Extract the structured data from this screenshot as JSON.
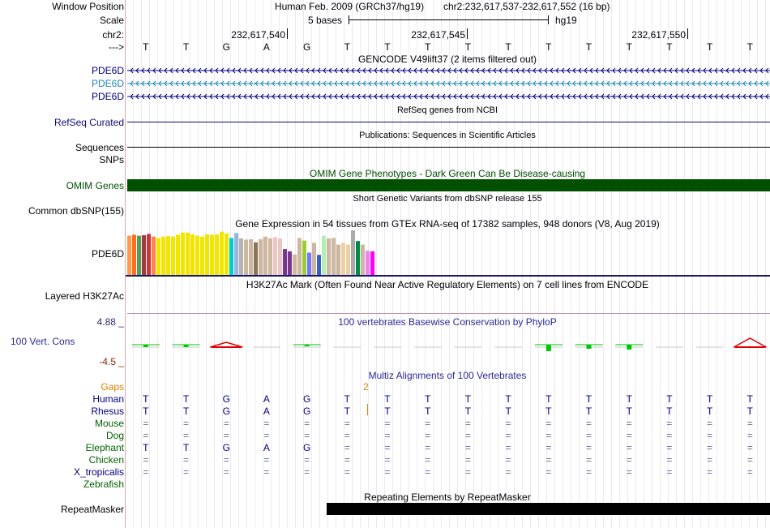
{
  "header": {
    "window_position_label": "Window Position",
    "scale_label": "Scale",
    "chr_label": "chr2:",
    "arrow_label": "--->",
    "assembly": "Human Feb. 2009 (GRCh37/hg19)",
    "position": "chr2:232,617,537-232,617,552 (16 bp)",
    "scale_text": "5 bases",
    "scale_db": "hg19",
    "ticks": [
      "232,617,540",
      "232,617,545",
      "232,617,550"
    ],
    "bases": [
      "T",
      "T",
      "G",
      "A",
      "G",
      "T",
      "T",
      "T",
      "T",
      "T",
      "T",
      "T",
      "T",
      "T",
      "T",
      "T"
    ]
  },
  "tracks": {
    "gencode": {
      "title": "GENCODE V49lift37 (2 items filtered out)",
      "items": [
        {
          "name": "PDE6D",
          "color": "#000080"
        },
        {
          "name": "PDE6D",
          "color": "#1e87b4"
        },
        {
          "name": "PDE6D",
          "color": "#000080"
        }
      ]
    },
    "refseq": {
      "title": "RefSeq genes from NCBI",
      "label": "RefSeq Curated",
      "color": "#0c0c78"
    },
    "pubs": {
      "title": "Publications: Sequences in Scientific Articles",
      "label1": "Sequences",
      "label2": "SNPs"
    },
    "omim": {
      "title": "OMIM Gene Phenotypes - Dark Green Can Be Disease-causing",
      "label": "OMIM Genes",
      "color": "#005000"
    },
    "dbsnp": {
      "title": "Short Genetic Variants from dbSNP release 155",
      "label": "Common dbSNP(155)"
    },
    "gtex": {
      "title": "Gene Expression in 54 tissues from GTEx RNA-seq of 17382 samples, 948 donors (V8, Aug 2019)",
      "label": "PDE6D",
      "bars": [
        {
          "value": 0.88,
          "color": "#ff9c4a"
        },
        {
          "value": 0.9,
          "color": "#ff6e20"
        },
        {
          "value": 0.88,
          "color": "#5a9b5a"
        },
        {
          "value": 0.89,
          "color": "#a03c3c"
        },
        {
          "value": 0.92,
          "color": "#c8373c"
        },
        {
          "value": 0.86,
          "color": "#ff8250"
        },
        {
          "value": 0.83,
          "color": "#f0e600"
        },
        {
          "value": 0.86,
          "color": "#f0e600"
        },
        {
          "value": 0.87,
          "color": "#f0e600"
        },
        {
          "value": 0.86,
          "color": "#f0e600"
        },
        {
          "value": 0.9,
          "color": "#f0e600"
        },
        {
          "value": 0.95,
          "color": "#f0e600"
        },
        {
          "value": 0.95,
          "color": "#f0e600"
        },
        {
          "value": 0.91,
          "color": "#f0e600"
        },
        {
          "value": 0.88,
          "color": "#f0e600"
        },
        {
          "value": 0.86,
          "color": "#f0e600"
        },
        {
          "value": 0.91,
          "color": "#f0e600"
        },
        {
          "value": 0.9,
          "color": "#f0e600"
        },
        {
          "value": 0.91,
          "color": "#f0e600"
        },
        {
          "value": 0.97,
          "color": "#f0e600"
        },
        {
          "value": 0.93,
          "color": "#f0e600"
        },
        {
          "value": 0.83,
          "color": "#00cdd1"
        },
        {
          "value": 0.94,
          "color": "#9bb4d7"
        },
        {
          "value": 0.82,
          "color": "#b4b4b4"
        },
        {
          "value": 0.79,
          "color": "#cdb79e"
        },
        {
          "value": 0.8,
          "color": "#cdb79e"
        },
        {
          "value": 0.73,
          "color": "#8b7355"
        },
        {
          "value": 0.8,
          "color": "#cdb79e"
        },
        {
          "value": 0.86,
          "color": "#cdb79e"
        },
        {
          "value": 0.82,
          "color": "#cdb79e"
        },
        {
          "value": 0.85,
          "color": "#eec5c5"
        },
        {
          "value": 0.82,
          "color": "#eec5c5"
        },
        {
          "value": 0.58,
          "color": "#7a378b"
        },
        {
          "value": 0.53,
          "color": "#7a378b"
        },
        {
          "value": 0.46,
          "color": "#cdb79e"
        },
        {
          "value": 0.83,
          "color": "#cdb79e"
        },
        {
          "value": 0.77,
          "color": "#9acd32"
        },
        {
          "value": 0.5,
          "color": "#7777ff"
        },
        {
          "value": 0.72,
          "color": "#cdb79e"
        },
        {
          "value": 0.45,
          "color": "#3a5fcd"
        },
        {
          "value": 0.88,
          "color": "#b4eeb4"
        },
        {
          "value": 0.82,
          "color": "#cdb79e"
        },
        {
          "value": 0.83,
          "color": "#cdb79e"
        },
        {
          "value": 0.68,
          "color": "#cdb79e"
        },
        {
          "value": 0.72,
          "color": "#eecfa1"
        },
        {
          "value": 0.68,
          "color": "#eecfa1"
        },
        {
          "value": 1.0,
          "color": "#aaaaaa"
        },
        {
          "value": 0.76,
          "color": "#008b45"
        },
        {
          "value": 0.68,
          "color": "#cdb79e"
        },
        {
          "value": 0.54,
          "color": "#ee82ee"
        },
        {
          "value": 0.53,
          "color": "#ff00ff"
        }
      ]
    },
    "h3k27ac": {
      "title": "H3K27Ac Mark (Often Found Near Active Regulatory Elements) on 7 cell lines from ENCODE",
      "label": "Layered H3K27Ac"
    },
    "phylop": {
      "title": "100 vertebrates Basewise Conservation by PhyloP",
      "label": "100 Vert. Cons",
      "ymax": "4.88 _",
      "ymin": "-4.5 _",
      "scores": [
        0.3,
        0.3,
        -0.9,
        0.0,
        0.2,
        0.0,
        0.0,
        0.0,
        0.0,
        0.0,
        0.8,
        0.5,
        0.6,
        0.0,
        0.0,
        -1.4
      ]
    },
    "multiz": {
      "title": "Multiz Alignments of 100 Vertebrates",
      "gaps_label": "Gaps",
      "gap_count": "2",
      "species": [
        {
          "name": "Human",
          "color": "#000080",
          "bases": [
            "T",
            "T",
            "G",
            "A",
            "G",
            "T",
            "T",
            "T",
            "T",
            "T",
            "T",
            "T",
            "T",
            "T",
            "T",
            "T"
          ]
        },
        {
          "name": "Rhesus",
          "color": "#000080",
          "bases": [
            "T",
            "T",
            "G",
            "A",
            "G",
            "T",
            "T",
            "T",
            "T",
            "T",
            "T",
            "T",
            "T",
            "T",
            "T",
            "T"
          ]
        },
        {
          "name": "Mouse",
          "color": "#006400",
          "bases": [
            "=",
            "=",
            "=",
            "=",
            "=",
            "=",
            "=",
            "=",
            "=",
            "=",
            "=",
            "=",
            "=",
            "=",
            "=",
            "="
          ]
        },
        {
          "name": "Dog",
          "color": "#006400",
          "bases": [
            "=",
            "=",
            "=",
            "=",
            "=",
            "=",
            "=",
            "=",
            "=",
            "=",
            "=",
            "=",
            "=",
            "=",
            "=",
            "="
          ]
        },
        {
          "name": "Elephant",
          "color": "#006400",
          "bases": [
            "T",
            "T",
            "G",
            "A",
            "G",
            "=",
            "=",
            "=",
            "=",
            "=",
            "=",
            "=",
            "=",
            "=",
            "=",
            "="
          ]
        },
        {
          "name": "Chicken",
          "color": "#006400",
          "bases": [
            "=",
            "=",
            "=",
            "=",
            "=",
            "=",
            "=",
            "=",
            "=",
            "=",
            "=",
            "=",
            "=",
            "=",
            "=",
            "="
          ]
        },
        {
          "name": "X_tropicalis",
          "color": "#000080",
          "bases": [
            "=",
            "=",
            "=",
            "=",
            "=",
            "=",
            "=",
            "=",
            "=",
            "=",
            "=",
            "=",
            "=",
            "=",
            "=",
            "="
          ]
        },
        {
          "name": "Zebrafish",
          "color": "#006400",
          "bases": []
        }
      ]
    },
    "repeatmasker": {
      "title": "Repeating Elements by RepeatMasker",
      "label": "RepeatMasker",
      "start_base": 5,
      "end_base": 16
    }
  }
}
